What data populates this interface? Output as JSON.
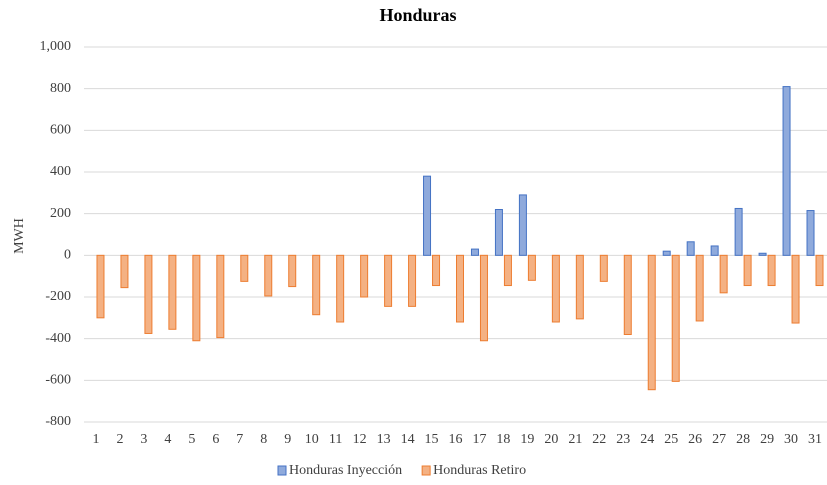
{
  "chart_data": {
    "type": "bar",
    "title": "Honduras",
    "y_label": "MWH",
    "categories": [
      "1",
      "2",
      "3",
      "4",
      "5",
      "6",
      "7",
      "8",
      "9",
      "10",
      "11",
      "12",
      "13",
      "14",
      "15",
      "16",
      "17",
      "18",
      "19",
      "20",
      "21",
      "22",
      "23",
      "24",
      "25",
      "26",
      "27",
      "28",
      "29",
      "30",
      "31"
    ],
    "series": [
      {
        "name": "Honduras Inyección",
        "color": "#8faadc",
        "edge": "#4472c4",
        "values": [
          0,
          0,
          0,
          0,
          0,
          0,
          0,
          0,
          0,
          0,
          0,
          0,
          0,
          0,
          380,
          0,
          30,
          220,
          290,
          0,
          0,
          0,
          0,
          0,
          20,
          65,
          45,
          225,
          10,
          810,
          215
        ]
      },
      {
        "name": "Honduras Retiro",
        "color": "#f4b183",
        "edge": "#ed7d31",
        "values": [
          -300,
          -155,
          -375,
          -355,
          -410,
          -395,
          -125,
          -195,
          -150,
          -285,
          -320,
          -200,
          -245,
          -245,
          -145,
          -320,
          -410,
          -145,
          -120,
          -320,
          -305,
          -125,
          -380,
          -645,
          -605,
          -315,
          -180,
          -145,
          -145,
          -325,
          -145
        ]
      }
    ],
    "ylim": [
      -800,
      1000
    ],
    "yticks": [
      -800,
      -600,
      -400,
      -200,
      0,
      200,
      400,
      600,
      800,
      {
        "value": 1000,
        "label": "1,000"
      }
    ],
    "grid": true,
    "legend": "bottom"
  }
}
